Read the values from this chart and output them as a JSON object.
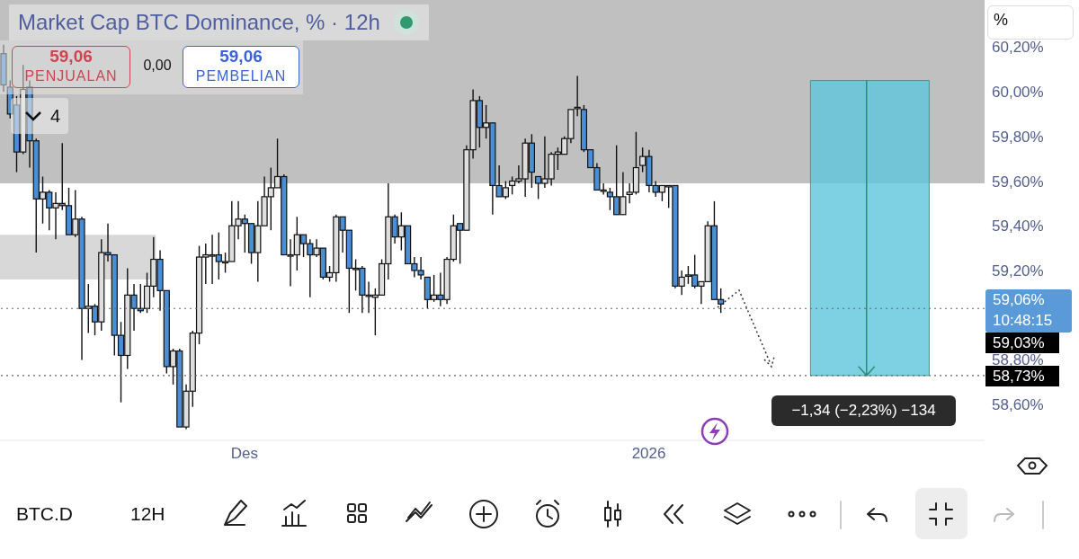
{
  "chart_data": {
    "type": "candlestick",
    "title": "Market Cap BTC Dominance, % · 12h",
    "categories": [
      null,
      null,
      null,
      null,
      null,
      null,
      null,
      null,
      null,
      null,
      null,
      null,
      null,
      null,
      null,
      null,
      null,
      null,
      null,
      null,
      null,
      null,
      null,
      null,
      null,
      null,
      null,
      null,
      null,
      null,
      null,
      null,
      null,
      null,
      null,
      null,
      null,
      "Des",
      null,
      null,
      null,
      null,
      null,
      null,
      null,
      null,
      null,
      null,
      null,
      null,
      null,
      null,
      null,
      null,
      null,
      null,
      null,
      null,
      null,
      null,
      null,
      null,
      null,
      null,
      null,
      null,
      null,
      null,
      null,
      null,
      null,
      null,
      null,
      null,
      null,
      null,
      null,
      null,
      null,
      null,
      null,
      null,
      null,
      null,
      null,
      null,
      null,
      null,
      null,
      null,
      null,
      null,
      null,
      null,
      null,
      null,
      null,
      null,
      null,
      "2026",
      null,
      null,
      null,
      null,
      null,
      null,
      null,
      null,
      null,
      null,
      null,
      null,
      null,
      null,
      null,
      null,
      null,
      null,
      null,
      null,
      null,
      null,
      null,
      null,
      null,
      null,
      null,
      null,
      null,
      null,
      null,
      null,
      null,
      null,
      null,
      null,
      null,
      null,
      null,
      null,
      null,
      null,
      null,
      null,
      null,
      null,
      null,
      null,
      null,
      null,
      null
    ],
    "ohlc": [
      [
        60.17,
        60.21,
        60.0,
        60.03
      ],
      [
        60.02,
        60.05,
        59.88,
        59.9
      ],
      [
        59.94,
        59.98,
        59.64,
        59.73
      ],
      [
        59.73,
        60.12,
        59.72,
        60.01
      ],
      [
        60.02,
        60.05,
        59.66,
        59.78
      ],
      [
        59.78,
        59.79,
        59.28,
        59.52
      ],
      [
        59.52,
        59.62,
        59.41,
        59.55
      ],
      [
        59.55,
        59.56,
        59.38,
        59.48
      ],
      [
        59.48,
        59.55,
        59.34,
        59.5
      ],
      [
        59.5,
        59.77,
        59.47,
        59.49
      ],
      [
        59.49,
        59.57,
        59.36,
        59.36
      ],
      [
        59.36,
        59.56,
        59.35,
        59.43
      ],
      [
        59.43,
        59.44,
        58.8,
        59.03
      ],
      [
        59.03,
        59.14,
        58.92,
        59.04
      ],
      [
        59.04,
        59.05,
        58.91,
        58.97
      ],
      [
        58.97,
        59.34,
        58.93,
        59.28
      ],
      [
        59.28,
        59.41,
        59.24,
        59.27
      ],
      [
        59.27,
        59.27,
        58.82,
        58.91
      ],
      [
        58.91,
        58.97,
        58.61,
        58.82
      ],
      [
        58.82,
        59.21,
        58.76,
        59.09
      ],
      [
        59.09,
        59.14,
        58.93,
        59.03
      ],
      [
        59.03,
        59.14,
        59.01,
        59.02
      ],
      [
        59.03,
        59.19,
        59.01,
        59.13
      ],
      [
        59.13,
        59.35,
        59.08,
        59.25
      ],
      [
        59.25,
        59.29,
        59.02,
        59.11
      ],
      [
        59.11,
        59.11,
        58.74,
        58.77
      ],
      [
        58.77,
        58.85,
        58.69,
        58.84
      ],
      [
        58.84,
        58.85,
        58.5,
        58.5
      ],
      [
        58.5,
        58.69,
        58.49,
        58.66
      ],
      [
        58.66,
        58.93,
        58.59,
        58.92
      ],
      [
        58.92,
        59.31,
        58.87,
        59.26
      ],
      [
        59.26,
        59.32,
        59.14,
        59.27
      ],
      [
        59.27,
        59.36,
        59.14,
        59.27
      ],
      [
        59.27,
        59.37,
        59.16,
        59.24
      ],
      [
        59.24,
        59.28,
        59.19,
        59.24
      ],
      [
        59.24,
        59.51,
        59.24,
        59.4
      ],
      [
        59.4,
        59.51,
        59.34,
        59.43
      ],
      [
        59.43,
        59.45,
        59.28,
        59.41
      ],
      [
        59.41,
        59.41,
        59.23,
        59.28
      ],
      [
        59.28,
        59.51,
        59.15,
        59.4
      ],
      [
        59.4,
        59.62,
        59.4,
        59.53
      ],
      [
        59.53,
        59.66,
        59.38,
        59.57
      ],
      [
        59.57,
        59.79,
        59.57,
        59.62
      ],
      [
        59.62,
        59.63,
        59.27,
        59.27
      ],
      [
        59.27,
        59.34,
        59.13,
        59.27
      ],
      [
        59.27,
        59.44,
        59.2,
        59.36
      ],
      [
        59.36,
        59.36,
        59.26,
        59.32
      ],
      [
        59.32,
        59.34,
        59.08,
        59.27
      ],
      [
        59.27,
        59.34,
        59.26,
        59.3
      ],
      [
        59.3,
        59.3,
        59.16,
        59.17
      ],
      [
        59.17,
        59.22,
        59.15,
        59.19
      ],
      [
        59.19,
        59.45,
        59.15,
        59.44
      ],
      [
        59.44,
        59.44,
        59.28,
        59.38
      ],
      [
        59.38,
        59.38,
        59.01,
        59.21
      ],
      [
        59.21,
        59.25,
        59.11,
        59.21
      ],
      [
        59.21,
        59.22,
        59.01,
        59.09
      ],
      [
        59.09,
        59.15,
        59.01,
        59.09
      ],
      [
        59.08,
        59.12,
        58.91,
        59.09
      ],
      [
        59.09,
        59.25,
        59.09,
        59.23
      ],
      [
        59.23,
        59.59,
        59.16,
        59.44
      ],
      [
        59.44,
        59.45,
        59.32,
        59.35
      ],
      [
        59.35,
        59.46,
        59.29,
        59.4
      ],
      [
        59.4,
        59.4,
        59.23,
        59.23
      ],
      [
        59.23,
        59.26,
        59.17,
        59.2
      ],
      [
        59.2,
        59.26,
        59.16,
        59.18
      ],
      [
        59.17,
        59.17,
        59.03,
        59.07
      ],
      [
        59.07,
        59.18,
        59.06,
        59.09
      ],
      [
        59.09,
        59.19,
        59.04,
        59.07
      ],
      [
        59.07,
        59.26,
        59.05,
        59.25
      ],
      [
        59.25,
        59.45,
        59.24,
        59.4
      ],
      [
        59.41,
        59.41,
        59.23,
        59.38
      ],
      [
        59.38,
        59.76,
        59.38,
        59.74
      ],
      [
        59.74,
        60.01,
        59.7,
        59.96
      ],
      [
        59.96,
        59.98,
        59.75,
        59.84
      ],
      [
        59.84,
        59.94,
        59.79,
        59.86
      ],
      [
        59.86,
        59.86,
        59.45,
        59.58
      ],
      [
        59.58,
        59.67,
        59.53,
        59.53
      ],
      [
        59.53,
        59.6,
        59.52,
        59.57
      ],
      [
        59.58,
        59.62,
        59.54,
        59.6
      ],
      [
        59.6,
        59.67,
        59.59,
        59.61
      ],
      [
        59.61,
        59.79,
        59.53,
        59.77
      ],
      [
        59.77,
        59.81,
        59.57,
        59.64
      ],
      [
        59.62,
        59.62,
        59.52,
        59.59
      ],
      [
        59.59,
        59.8,
        59.57,
        59.61
      ],
      [
        59.61,
        59.73,
        59.58,
        59.72
      ],
      [
        59.72,
        59.75,
        59.65,
        59.73
      ],
      [
        59.72,
        59.8,
        59.72,
        59.79
      ],
      [
        59.79,
        59.92,
        59.77,
        59.92
      ],
      [
        59.93,
        60.07,
        59.89,
        59.93
      ],
      [
        59.92,
        59.94,
        59.73,
        59.74
      ],
      [
        59.74,
        59.74,
        59.66,
        59.66
      ],
      [
        59.66,
        59.68,
        59.56,
        59.56
      ],
      [
        59.56,
        59.59,
        59.54,
        59.56
      ],
      [
        59.55,
        59.57,
        59.47,
        59.53
      ],
      [
        59.53,
        59.76,
        59.45,
        59.45
      ],
      [
        59.45,
        59.64,
        59.45,
        59.53
      ],
      [
        59.54,
        59.59,
        59.5,
        59.55
      ],
      [
        59.55,
        59.82,
        59.54,
        59.66
      ],
      [
        59.67,
        59.75,
        59.64,
        59.71
      ],
      [
        59.71,
        59.74,
        59.55,
        59.58
      ],
      [
        59.58,
        59.6,
        59.53,
        59.55
      ],
      [
        59.55,
        59.58,
        59.51,
        59.58
      ],
      [
        59.58,
        59.58,
        59.48,
        59.58
      ],
      [
        59.58,
        59.58,
        59.12,
        59.13
      ],
      [
        59.13,
        59.2,
        59.09,
        59.17
      ],
      [
        59.18,
        59.22,
        59.14,
        59.18
      ],
      [
        59.18,
        59.27,
        59.12,
        59.13
      ],
      [
        59.13,
        59.15,
        59.05,
        59.15
      ],
      [
        59.15,
        59.42,
        59.15,
        59.4
      ],
      [
        59.4,
        59.51,
        59.07,
        59.07
      ],
      [
        59.07,
        59.12,
        59.01,
        59.05
      ],
      null,
      null,
      null,
      null,
      null,
      null,
      null,
      null,
      null,
      null,
      null,
      null,
      null,
      null,
      null,
      null,
      null,
      null,
      null,
      null,
      null,
      null,
      null,
      null,
      null,
      null,
      null,
      null,
      null,
      null,
      null,
      null,
      null,
      null,
      null,
      null,
      null,
      null,
      null,
      null
    ],
    "colors": [
      "#4a8fd6",
      "#4a8fd6",
      "#4a8fd6",
      "#dedede",
      "#4a8fd6",
      "#4a8fd6",
      "#dedede",
      "#4a8fd6",
      "#dedede",
      "#4a8fd6",
      "#4a8fd6",
      "#dedede",
      "#4a8fd6",
      "#dedede",
      "#4a8fd6",
      "#dedede",
      "#4a8fd6",
      "#4a8fd6",
      "#4a8fd6",
      "#dedede",
      "#4a8fd6",
      "#4a8fd6",
      "#dedede",
      "#dedede",
      "#4a8fd6",
      "#4a8fd6",
      "#dedede",
      "#4a8fd6",
      "#dedede",
      "#dedede",
      "#dedede",
      "#dedede",
      "#dedede",
      "#4a8fd6",
      "#dedede",
      "#dedede",
      "#dedede",
      "#4a8fd6",
      "#4a8fd6",
      "#dedede",
      "#dedede",
      "#dedede",
      "#dedede",
      "#4a8fd6",
      "#dedede",
      "#dedede",
      "#4a8fd6",
      "#4a8fd6",
      "#dedede",
      "#4a8fd6",
      "#dedede",
      "#dedede",
      "#4a8fd6",
      "#4a8fd6",
      "#dedede",
      "#4a8fd6",
      "#dedede",
      "#dedede",
      "#dedede",
      "#dedede",
      "#4a8fd6",
      "#dedede",
      "#4a8fd6",
      "#4a8fd6",
      "#4a8fd6",
      "#4a8fd6",
      "#dedede",
      "#4a8fd6",
      "#dedede",
      "#dedede",
      "#4a8fd6",
      "#dedede",
      "#dedede",
      "#4a8fd6",
      "#dedede",
      "#4a8fd6",
      "#4a8fd6",
      "#dedede",
      "#dedede",
      "#dedede",
      "#dedede",
      "#4a8fd6",
      "#4a8fd6",
      "#dedede",
      "#dedede",
      "#dedede",
      "#dedede",
      "#dedede",
      "#dedede",
      "#4a8fd6",
      "#4a8fd6",
      "#4a8fd6",
      "#dedede",
      "#4a8fd6",
      "#4a8fd6",
      "#dedede",
      "#dedede",
      "#dedede",
      "#dedede",
      "#4a8fd6",
      "#4a8fd6",
      "#dedede",
      "#dedede",
      "#4a8fd6",
      "#dedede",
      "#dedede",
      "#4a8fd6",
      "#dedede",
      "#dedede",
      "#4a8fd6",
      "#4a8fd6",
      null,
      null,
      null,
      null,
      null,
      null,
      null,
      null,
      null,
      null,
      null,
      null,
      null,
      null,
      null,
      null,
      null,
      null,
      null,
      null,
      null,
      null,
      null,
      null,
      null,
      null,
      null,
      null,
      null,
      null,
      null,
      null,
      null,
      null,
      null,
      null,
      null,
      null,
      null,
      null
    ],
    "ylim": [
      58.44,
      60.41
    ],
    "yticks": [
      {
        "value": 58.6,
        "label": "58,60%"
      },
      {
        "value": 58.8,
        "label": "58,80%"
      },
      {
        "value": 59.2,
        "label": "59,20%"
      },
      {
        "value": 59.4,
        "label": "59,40%"
      },
      {
        "value": 59.6,
        "label": "59,60%"
      },
      {
        "value": 59.8,
        "label": "59,80%"
      },
      {
        "value": 60.0,
        "label": "60,00%"
      },
      {
        "value": 60.2,
        "label": "60,20%"
      }
    ],
    "ref_lines": [
      {
        "axis": "y",
        "value": 59.03,
        "label": "59,03%",
        "color": "#666666",
        "line_style": "dotted"
      },
      {
        "axis": "y",
        "value": 58.73,
        "label": "58,73%",
        "color": "#666666",
        "line_style": "dotted"
      }
    ],
    "bands": [
      {
        "axis": "y",
        "from": 59.59,
        "to": 60.41,
        "color": "#c0c0c0"
      },
      {
        "axis": "y",
        "from": 59.16,
        "to": 59.36,
        "color": "#d8d8d8"
      },
      {
        "axis": "y",
        "from": 58.73,
        "to": 60.05,
        "color": "#5cc6dc"
      }
    ],
    "annotations": [
      "59,06",
      "PENJUALAN",
      "0,00",
      "59,06",
      "PEMBELIAN",
      "4",
      "%",
      "59,06%",
      "10:48:15",
      "−1,34 (−2,23%) −134",
      "BTC.D",
      "12H"
    ]
  }
}
